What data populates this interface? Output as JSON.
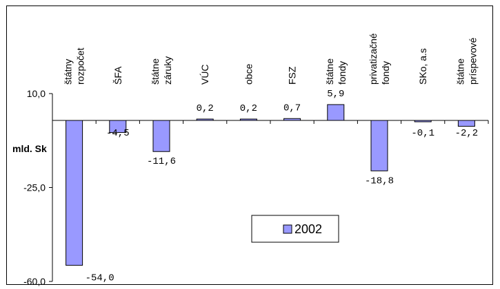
{
  "chart_data": {
    "type": "bar",
    "categories": [
      [
        "štátny",
        "rozpočet"
      ],
      [
        "ŠFA"
      ],
      [
        "štátne",
        "záruky"
      ],
      [
        "VÚC"
      ],
      [
        "obce"
      ],
      [
        "FSZ"
      ],
      [
        "štátne",
        "fondy"
      ],
      [
        "privatizačné",
        "fondy"
      ],
      [
        "SKo, a.s"
      ],
      [
        "štátne",
        "príspevové"
      ]
    ],
    "series": [
      {
        "name": "2002",
        "values": [
          -54.0,
          -4.5,
          -11.6,
          0.2,
          0.2,
          0.7,
          5.9,
          -18.8,
          -0.1,
          -2.2
        ],
        "labels": [
          "-54,0",
          "-4,5",
          "-11,6",
          "0,2",
          "0,2",
          "0,7",
          "5,9",
          "-18,8",
          "-0,1",
          "-2,2"
        ],
        "color": "#9999ff"
      }
    ],
    "ylabel": "mld. Sk",
    "ylim": [
      -60,
      10
    ],
    "yticks": [
      10,
      -25,
      -60
    ],
    "ytick_labels": [
      "10,0",
      "-25,0",
      "-60,0"
    ],
    "grid": false,
    "legend": "bottom-center"
  }
}
